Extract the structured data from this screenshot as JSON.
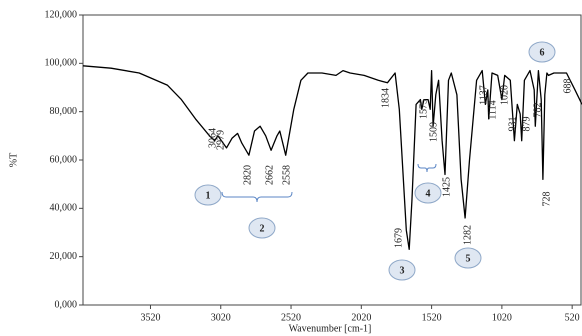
{
  "chart_data": {
    "type": "line",
    "y_label": "%T",
    "x_label": "Wavenumber [cm-1]",
    "xlim": [
      4000,
      450
    ],
    "ylim": [
      0,
      120
    ],
    "xticks": [
      3520,
      3020,
      2520,
      2020,
      1520,
      1020,
      520
    ],
    "yticks": [
      {
        "value": 0,
        "label": "0,000"
      },
      {
        "value": 20,
        "label": "20,000"
      },
      {
        "value": 40,
        "label": "40,000"
      },
      {
        "value": 60,
        "label": "60,000"
      },
      {
        "value": 80,
        "label": "80,000"
      },
      {
        "value": 100,
        "label": "100,000"
      },
      {
        "value": 120,
        "label": "120,000"
      }
    ],
    "grid": false,
    "series": [
      {
        "color": "#000000",
        "x": [
          4000,
          3800,
          3600,
          3400,
          3300,
          3200,
          3100,
          3064,
          3040,
          2979,
          2940,
          2900,
          2870,
          2820,
          2780,
          2740,
          2700,
          2662,
          2620,
          2600,
          2558,
          2500,
          2450,
          2400,
          2300,
          2200,
          2150,
          2100,
          2000,
          1900,
          1834,
          1780,
          1750,
          1700,
          1679,
          1660,
          1630,
          1600,
          1590,
          1575,
          1545,
          1530,
          1520,
          1509,
          1490,
          1470,
          1445,
          1425,
          1400,
          1380,
          1340,
          1310,
          1282,
          1250,
          1200,
          1160,
          1137,
          1120,
          1114,
          1090,
          1050,
          1020,
          1000,
          960,
          931,
          910,
          890,
          879,
          860,
          820,
          790,
          782,
          760,
          740,
          728,
          715,
          700,
          688,
          650,
          560,
          500,
          450
        ],
        "values": [
          99,
          98,
          96,
          91,
          85,
          77,
          70,
          68,
          70,
          65,
          69,
          71,
          67,
          62,
          72,
          74,
          70,
          64,
          70,
          72,
          62,
          81,
          93,
          96,
          96,
          95,
          97,
          96,
          95,
          93,
          92,
          96,
          81,
          31,
          23,
          43,
          83,
          85,
          81,
          85,
          85,
          81,
          97,
          74,
          87,
          93,
          68,
          54,
          93,
          96,
          87,
          52,
          36,
          60,
          93,
          97,
          83,
          89,
          77,
          96,
          95,
          85,
          95,
          93,
          68,
          83,
          79,
          68,
          93,
          97,
          89,
          74,
          97,
          85,
          52,
          87,
          96,
          95,
          96,
          96,
          89,
          83
        ]
      }
    ],
    "peak_labels": [
      3064,
      2979,
      2820,
      2662,
      2558,
      1834,
      1679,
      1575,
      1509,
      1425,
      1282,
      1137,
      1114,
      1020,
      931,
      879,
      782,
      728,
      688
    ],
    "markers": [
      1,
      2,
      3,
      4,
      5,
      6
    ]
  }
}
